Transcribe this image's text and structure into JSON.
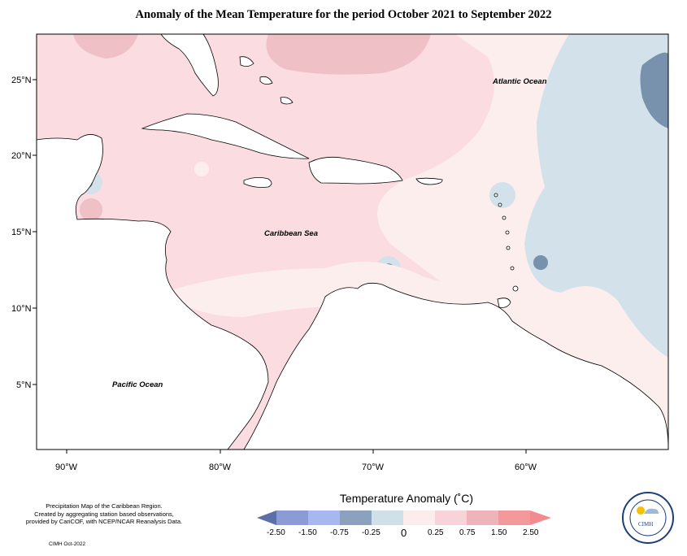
{
  "title": "Anomaly of the Mean Temperature for the period October 2021 to September 2022",
  "map": {
    "lat_ticks": [
      "25°N",
      "20°N",
      "15°N",
      "10°N",
      "5°N"
    ],
    "lon_ticks": [
      "90°W",
      "80°W",
      "70°W",
      "60°W"
    ],
    "labels": {
      "atlantic": "Atlantic Ocean",
      "caribbean": "Caribbean Sea",
      "pacific": "Pacific Ocean"
    }
  },
  "legend": {
    "title": "Temperature Anomaly (˚C)",
    "ticks": [
      "-2.50",
      "-1.50",
      "-0.75",
      "-0.25",
      "0",
      "0.25",
      "0.75",
      "1.50",
      "2.50"
    ],
    "colors": [
      "#5c6fa8",
      "#8a9bd6",
      "#a7b8f0",
      "#8ba1bd",
      "#cfe0e8",
      "#fdecec",
      "#f8d4da",
      "#eeb4b9",
      "#f3989b",
      "#f58a8e"
    ]
  },
  "footer": {
    "note_line1": "Precipitation Map of the Caribbean Region.",
    "note_line2": "Created by aggregating station based observations,",
    "note_line3": "provided by CariCOF, with NCEP/NCAR Reanalysis Data.",
    "credit": "CIMH Oct-2022"
  },
  "logo": {
    "text": "CIMH"
  }
}
